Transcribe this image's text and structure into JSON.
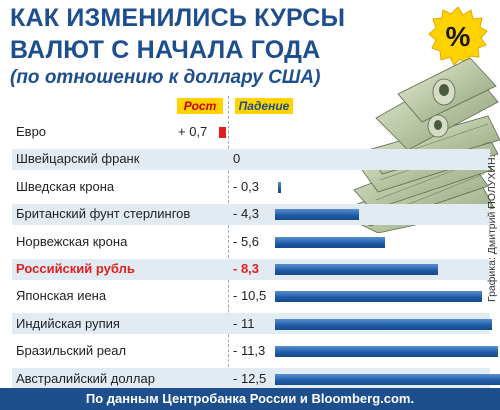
{
  "header": {
    "title_line1": "КАК ИЗМЕНИЛИСЬ КУРСЫ",
    "title_line2": "ВАЛЮТ С НАЧАЛА ГОДА",
    "subtitle": "(по отношению к доллару США)",
    "badge_symbol": "%"
  },
  "legend": {
    "growth": "Рост",
    "decline": "Падение"
  },
  "credit": "Графика: Дмитрий ПОЛУХИН.",
  "footer": "По данным Центробанка России и Bloomberg.com.",
  "colors": {
    "title": "#1d4f8f",
    "negative_bar": "#1d5aa6",
    "positive_bar": "#e02020",
    "highlight": "#e02020",
    "legend_bg": "#ffd200"
  },
  "chart_data": {
    "type": "bar",
    "orientation": "horizontal",
    "title": "КАК ИЗМЕНИЛИСЬ КУРСЫ ВАЛЮТ С НАЧАЛА ГОДА",
    "subtitle": "(по отношению к доллару США)",
    "unit": "%",
    "categories": [
      "Евро",
      "Швейцарский франк",
      "Шведская крона",
      "Британский фунт стерлингов",
      "Норвежская крона",
      "Российский рубль",
      "Японская иена",
      "Индийская рупия",
      "Бразильский реал",
      "Австралийский доллар"
    ],
    "values": [
      0.7,
      0,
      -0.3,
      -4.3,
      -5.6,
      -8.3,
      -10.5,
      -11,
      -11.3,
      -12.5
    ],
    "value_labels": [
      "+ 0,7",
      "0",
      "- 0,3",
      "- 4,3",
      "- 5,6",
      "- 8,3",
      "- 10,5",
      "- 11",
      "- 11,3",
      "- 12,5"
    ],
    "highlighted_category": "Российский рубль",
    "legend": [
      "Рост",
      "Падение"
    ]
  }
}
